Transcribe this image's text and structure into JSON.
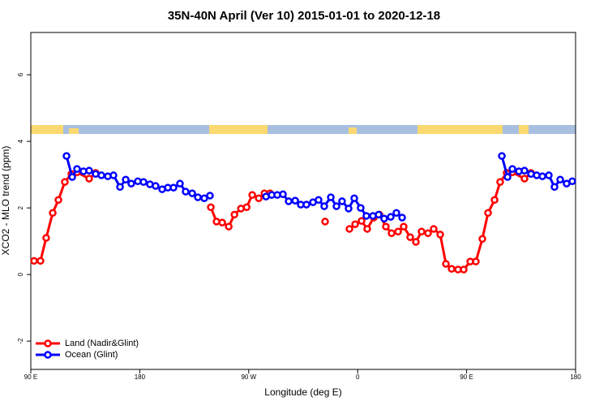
{
  "chart_data": {
    "type": "line",
    "title": "35N-40N April (Ver 10)   2015-01-01 to 2020-12-18",
    "x_label": "Longitude (deg E)",
    "y_label": "XCO2 - MLO trend (ppm)",
    "xlim": [
      90,
      540
    ],
    "xticks": [
      {
        "value": 90,
        "label": "90 E"
      },
      {
        "value": 180,
        "label": "180"
      },
      {
        "value": 270,
        "label": "90 W"
      },
      {
        "value": 360,
        "label": "0"
      },
      {
        "value": 450,
        "label": "90 E"
      },
      {
        "value": 540,
        "label": "180"
      }
    ],
    "ylim": [
      -2.85,
      7.27
    ],
    "yticks": [
      -2,
      0,
      2,
      4,
      6
    ],
    "legend": "bottom-left",
    "series": [
      {
        "name": "Land (Nadir&Glint)",
        "color": "#ff0000",
        "x": [
          92.7,
          98.0,
          102.7,
          108.1,
          112.8,
          118.1,
          123.5,
          128.2,
          138.2,
          143.6,
          200,
          238.7,
          243.4,
          248.1,
          253.5,
          258.2,
          263.6,
          268.3,
          272.9,
          278.3,
          283.0,
          287.6,
          300,
          333.1,
          345,
          353.2,
          357.9,
          363.2,
          367.9,
          373.3,
          378.0,
          383.3,
          388.0,
          393.4,
          398.0,
          403.4,
          408.1,
          412.8,
          418.1,
          422.8,
          428.2,
          432.9,
          437.6,
          442.9,
          447.6,
          453.0,
          457.6,
          463.0,
          467.7,
          473.1,
          477.7,
          483.1,
          487.8,
          497.8,
          503.2
        ],
        "values": [
          0.41,
          0.41,
          1.1,
          1.85,
          2.24,
          2.78,
          3.02,
          3.07,
          2.88,
          3.05,
          null,
          2.02,
          1.59,
          1.56,
          1.44,
          1.8,
          1.98,
          2.02,
          2.39,
          2.29,
          2.44,
          2.44,
          null,
          1.59,
          null,
          1.37,
          1.51,
          1.61,
          1.37,
          1.71,
          1.8,
          1.44,
          1.24,
          1.29,
          1.44,
          1.12,
          0.98,
          1.29,
          1.24,
          1.37,
          1.2,
          0.32,
          0.17,
          0.15,
          0.15,
          0.39,
          0.39,
          1.07,
          1.85,
          2.24,
          2.78,
          3.05,
          3.07,
          2.88,
          3.05
        ]
      },
      {
        "name": "Ocean (Glint)",
        "color": "#0000ff",
        "x": [
          119.5,
          124.2,
          128.2,
          133.5,
          138.2,
          143.6,
          148.3,
          153.6,
          158.3,
          163.7,
          168.4,
          173.0,
          178.4,
          183.1,
          188.4,
          193.1,
          198.5,
          203.2,
          207.9,
          213.2,
          217.9,
          223.3,
          228.0,
          233.3,
          238.0,
          260,
          284.3,
          289.0,
          293.6,
          298.3,
          303.0,
          308.4,
          313.0,
          317.7,
          323.1,
          327.7,
          332.4,
          337.8,
          342.5,
          347.1,
          352.5,
          357.2,
          362.5,
          367.2,
          372.6,
          377.3,
          381.9,
          387.3,
          392.0,
          396.7,
          440,
          479.1,
          483.8,
          487.8,
          493.2,
          497.8,
          503.2,
          507.9,
          512.6,
          517.9,
          522.6,
          527.3,
          532.6,
          537.3
        ],
        "values": [
          3.56,
          2.93,
          3.17,
          3.1,
          3.12,
          3.02,
          2.98,
          2.95,
          2.98,
          2.63,
          2.85,
          2.73,
          2.8,
          2.78,
          2.71,
          2.66,
          2.56,
          2.61,
          2.61,
          2.73,
          2.49,
          2.44,
          2.32,
          2.29,
          2.37,
          null,
          2.34,
          2.39,
          2.39,
          2.41,
          2.2,
          2.22,
          2.1,
          2.1,
          2.17,
          2.24,
          2.05,
          2.32,
          2.05,
          2.2,
          1.98,
          2.29,
          2.0,
          1.76,
          1.76,
          1.8,
          1.68,
          1.73,
          1.85,
          1.71,
          null,
          3.56,
          2.93,
          3.17,
          3.1,
          3.12,
          3.02,
          2.98,
          2.95,
          2.98,
          2.63,
          2.85,
          2.73,
          2.8
        ]
      }
    ]
  }
}
